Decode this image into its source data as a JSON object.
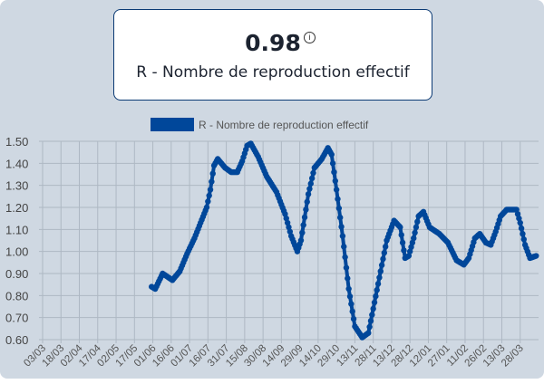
{
  "card": {
    "value": "0.98",
    "info_icon": "i",
    "label": "R - Nombre de reproduction effectif"
  },
  "chart_data": {
    "type": "line",
    "title": "",
    "legend": {
      "label": "R - Nombre de reproduction effectif",
      "position": "top",
      "color": "#00479a"
    },
    "x_tick_labels": [
      "03/03",
      "18/03",
      "02/04",
      "17/04",
      "02/05",
      "17/05",
      "01/06",
      "16/06",
      "01/07",
      "16/07",
      "31/07",
      "15/08",
      "30/08",
      "14/09",
      "29/09",
      "14/10",
      "29/10",
      "13/11",
      "28/11",
      "13/12",
      "28/12",
      "12/01",
      "27/01",
      "11/02",
      "26/02",
      "13/03",
      "28/03"
    ],
    "x_unit": "days since 03/03",
    "y_tick_labels": [
      "1.50",
      "1.40",
      "1.30",
      "1.20",
      "1.10",
      "1.00",
      "0.90",
      "0.80",
      "0.70",
      "0.60"
    ],
    "ylim": [
      0.6,
      1.5
    ],
    "grid": true,
    "series": [
      {
        "name": "R - Nombre de reproduction effectif",
        "color": "#00479a",
        "x": [
          89,
          92,
          98,
          106,
          112,
          118,
          124,
          129,
          134,
          137,
          140,
          143,
          149,
          154,
          159,
          163,
          167,
          170,
          176,
          183,
          191,
          198,
          203,
          208,
          211,
          217,
          222,
          228,
          233,
          236,
          240,
          245,
          250,
          255,
          261,
          266,
          270,
          276,
          281,
          287,
          292,
          296,
          299,
          303,
          307,
          311,
          316,
          324,
          331,
          338,
          344,
          348,
          353,
          357,
          362,
          366,
          370,
          374,
          379,
          387,
          390,
          394,
          398,
          403
        ],
        "y": [
          0.84,
          0.83,
          0.9,
          0.87,
          0.91,
          0.99,
          1.06,
          1.13,
          1.2,
          1.28,
          1.39,
          1.42,
          1.38,
          1.36,
          1.36,
          1.41,
          1.48,
          1.49,
          1.43,
          1.34,
          1.27,
          1.17,
          1.07,
          1.0,
          1.05,
          1.26,
          1.38,
          1.42,
          1.47,
          1.44,
          1.28,
          1.07,
          0.83,
          0.66,
          0.61,
          0.63,
          0.74,
          0.91,
          1.05,
          1.14,
          1.11,
          0.97,
          0.98,
          1.06,
          1.16,
          1.18,
          1.11,
          1.08,
          1.04,
          0.96,
          0.94,
          0.97,
          1.06,
          1.08,
          1.04,
          1.03,
          1.09,
          1.16,
          1.19,
          1.19,
          1.13,
          1.03,
          0.97,
          0.98
        ]
      }
    ]
  }
}
